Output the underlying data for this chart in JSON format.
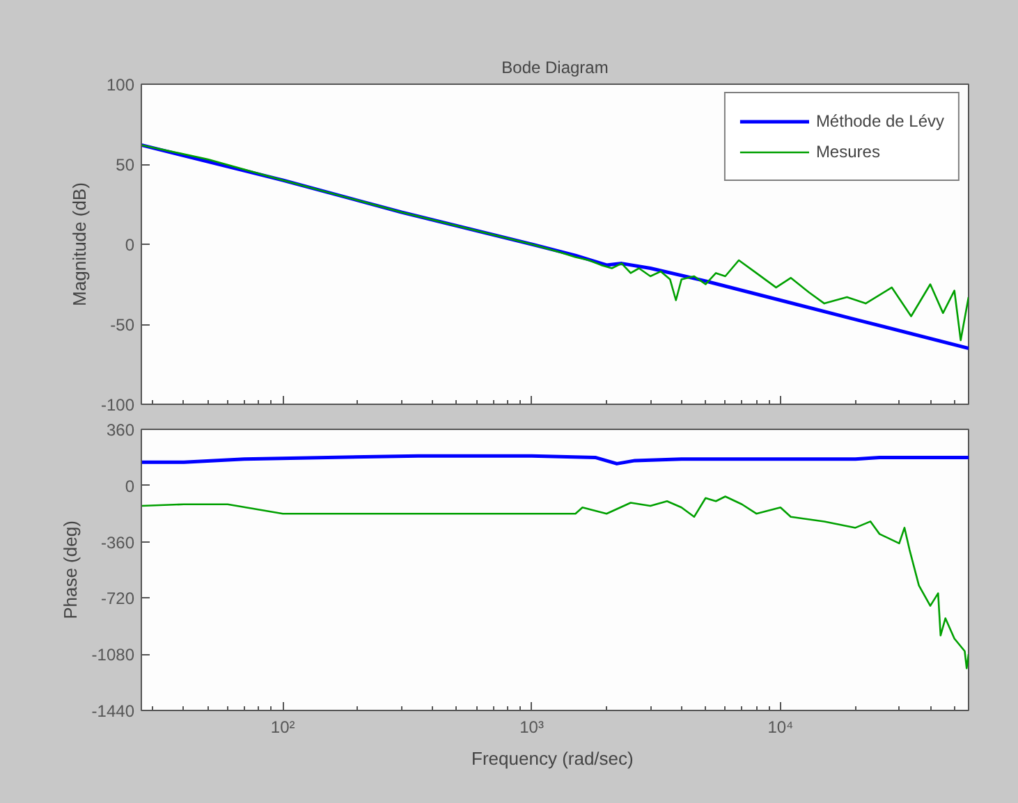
{
  "chart_data": [
    {
      "type": "line",
      "title": "Bode Diagram",
      "ylabel": "Magnitude (dB)",
      "log": "x",
      "xlim": [
        27,
        57000
      ],
      "ylim": [
        -100,
        100
      ],
      "yticks": [
        -100,
        -50,
        0,
        50,
        100
      ],
      "xticks": [
        {
          "value": 100,
          "label": null
        },
        {
          "value": 1000,
          "label": null
        },
        {
          "value": 10000,
          "label": null
        }
      ],
      "tick_labels": "y",
      "grid": false,
      "legend": "top right",
      "series": [
        {
          "name": "Méthode de Lévy",
          "color": "#0000ff",
          "x": [
            27,
            100,
            300,
            1000,
            1500,
            2000,
            2300,
            3000,
            5000,
            10000,
            20000,
            57000
          ],
          "values": [
            62,
            40,
            20,
            0,
            -7,
            -13,
            -12,
            -15,
            -23,
            -35,
            -47,
            -65
          ]
        },
        {
          "name": "Mesures",
          "color": "#00a000",
          "x": [
            27,
            50,
            100,
            300,
            1000,
            1300,
            1500,
            1700,
            1900,
            2100,
            2300,
            2500,
            2700,
            3000,
            3300,
            3600,
            3800,
            4000,
            4500,
            5000,
            5500,
            6000,
            6800,
            8000,
            9600,
            11000,
            13000,
            15000,
            18500,
            22000,
            28000,
            33500,
            40000,
            45000,
            50000,
            53000,
            57000
          ],
          "values": [
            62,
            53,
            40,
            20,
            0,
            -5,
            -8,
            -10,
            -13,
            -15,
            -12,
            -18,
            -15,
            -20,
            -17,
            -22,
            -35,
            -22,
            -20,
            -25,
            -18,
            -20,
            -10,
            -18,
            -27,
            -21,
            -30,
            -37,
            -33,
            -37,
            -27,
            -45,
            -25,
            -43,
            -29,
            -60,
            -33
          ]
        }
      ]
    },
    {
      "type": "line",
      "xlabel": "Frequency  (rad/sec)",
      "ylabel": "Phase (deg)",
      "log": "x",
      "xlim": [
        27,
        57000
      ],
      "ylim": [
        -1440,
        360
      ],
      "yticks": [
        -1440,
        -1080,
        -720,
        -360,
        0,
        360
      ],
      "xticks": [
        {
          "value": 100,
          "label": "10²"
        },
        {
          "value": 1000,
          "label": "10³"
        },
        {
          "value": 10000,
          "label": "10⁴"
        }
      ],
      "grid": false,
      "series": [
        {
          "color": "#0000ff",
          "x": [
            27,
            40,
            70,
            350,
            1000,
            1800,
            2200,
            2600,
            4000,
            10000,
            20000,
            25000,
            57000
          ],
          "values": [
            150,
            150,
            170,
            190,
            190,
            180,
            140,
            160,
            170,
            170,
            170,
            180,
            180
          ]
        },
        {
          "color": "#00a000",
          "x": [
            27,
            40,
            60,
            100,
            1500,
            1600,
            2000,
            2500,
            3000,
            3500,
            4000,
            4500,
            5000,
            5500,
            6000,
            7000,
            8000,
            10000,
            11000,
            15000,
            20000,
            23000,
            25000,
            30000,
            31500,
            33000,
            36000,
            40000,
            43000,
            44000,
            46000,
            50000,
            55000,
            56000,
            57000
          ],
          "values": [
            -130,
            -120,
            -120,
            -180,
            -180,
            -140,
            -180,
            -110,
            -130,
            -100,
            -140,
            -200,
            -80,
            -100,
            -70,
            -120,
            -180,
            -140,
            -200,
            -230,
            -270,
            -230,
            -310,
            -370,
            -270,
            -410,
            -640,
            -770,
            -690,
            -960,
            -850,
            -980,
            -1060,
            -1170,
            -1080
          ]
        }
      ]
    }
  ]
}
